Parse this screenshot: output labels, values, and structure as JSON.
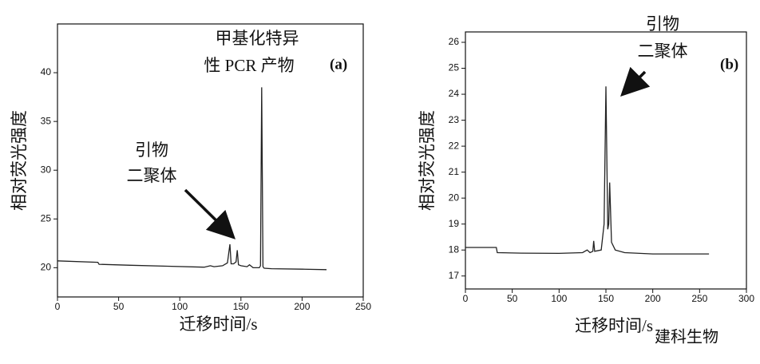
{
  "chart_data": [
    {
      "type": "line",
      "panel_label": "(a)",
      "x_label": "迁移时间/s",
      "y_label": "相对荧光强度",
      "annotations": [
        {
          "lines": [
            "甲基化特异",
            "性 PCR 产物"
          ]
        },
        {
          "lines": [
            "引物",
            "二聚体"
          ]
        }
      ],
      "x": [
        0,
        33,
        34,
        60,
        90,
        120,
        125,
        128,
        135,
        139,
        141,
        142,
        144,
        146,
        147,
        148,
        150,
        155,
        157,
        160,
        165,
        166,
        167,
        168,
        169,
        175,
        200,
        220
      ],
      "series": [
        {
          "color": "#222",
          "values": [
            20.7,
            20.55,
            20.35,
            20.25,
            20.15,
            20.05,
            20.2,
            20.1,
            20.2,
            20.5,
            22.4,
            20.4,
            20.4,
            20.6,
            21.8,
            20.3,
            20.2,
            20.1,
            20.3,
            20.0,
            20.0,
            20.2,
            38.5,
            20.1,
            19.95,
            19.9,
            19.85,
            19.8
          ]
        }
      ],
      "xlim": [
        0,
        250
      ],
      "xticks": [
        0,
        50,
        100,
        150,
        200,
        250
      ],
      "ylim": [
        17,
        45
      ],
      "yticks": [
        20,
        25,
        30,
        35,
        40
      ]
    },
    {
      "type": "line",
      "panel_label": "(b)",
      "x_label": "迁移时间/s",
      "y_label": "相对荧光强度",
      "annotations": [
        {
          "lines": [
            "引物",
            "二聚体"
          ]
        }
      ],
      "x": [
        0,
        33,
        34,
        60,
        100,
        125,
        130,
        133,
        136,
        137,
        138,
        145,
        148,
        150,
        152,
        153,
        154,
        156,
        160,
        170,
        200,
        260
      ],
      "series": [
        {
          "color": "#222",
          "values": [
            18.1,
            18.1,
            17.9,
            17.88,
            17.87,
            17.9,
            18.0,
            17.9,
            17.95,
            18.35,
            17.95,
            18.0,
            19.0,
            24.3,
            18.8,
            19.0,
            20.6,
            18.3,
            18.0,
            17.9,
            17.85,
            17.85
          ]
        }
      ],
      "xlim": [
        0,
        300
      ],
      "xticks": [
        0,
        50,
        100,
        150,
        200,
        250,
        300
      ],
      "ylim": [
        16.5,
        26.4
      ],
      "yticks": [
        17,
        18,
        19,
        20,
        21,
        22,
        23,
        24,
        25,
        26
      ]
    }
  ],
  "watermark": "建科生物"
}
